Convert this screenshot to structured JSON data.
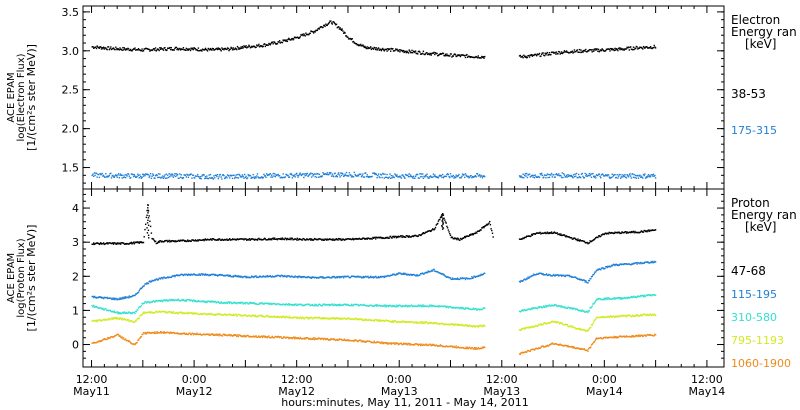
{
  "chart_data": [
    {
      "panel": "electron",
      "type": "scatter",
      "ylabel": [
        "ACE EPAM",
        "log(Electron Flux)",
        "[1/(cm²s ster MeV)]"
      ],
      "ylim": [
        1.25,
        3.55
      ],
      "yticks": [
        1.5,
        2.0,
        2.5,
        3.0,
        3.5
      ],
      "ytick_labels": [
        "1.5",
        "2.0",
        "2.5",
        "3.0",
        "3.5"
      ],
      "legend_title": [
        "Electron",
        "Energy ran",
        "[keV]"
      ],
      "series": [
        {
          "name": "38-53",
          "color": "#000000",
          "x": [
            0,
            4,
            8,
            12,
            16,
            20,
            24,
            28,
            32,
            36,
            40,
            44,
            48,
            52,
            54,
            56,
            58,
            60,
            62,
            64,
            68,
            72,
            76,
            80,
            84,
            88,
            92,
            96,
            100,
            104,
            108,
            112,
            116,
            120,
            124,
            128,
            132
          ],
          "y": [
            3.06,
            3.04,
            3.03,
            3.02,
            3.03,
            3.04,
            3.03,
            3.02,
            3.03,
            3.06,
            3.08,
            3.12,
            3.18,
            3.26,
            3.33,
            3.38,
            3.3,
            3.18,
            3.1,
            3.05,
            3.03,
            3.01,
            2.99,
            2.97,
            2.95,
            2.94,
            2.93,
            null,
            2.93,
            2.95,
            2.98,
            3.0,
            3.01,
            3.02,
            3.03,
            3.05,
            3.06
          ]
        },
        {
          "name": "175-315",
          "color": "#1f7fd6",
          "x": [
            0,
            10,
            20,
            30,
            40,
            50,
            60,
            70,
            80,
            92,
            96,
            100,
            110,
            120,
            132
          ],
          "y": [
            1.41,
            1.4,
            1.4,
            1.39,
            1.4,
            1.41,
            1.42,
            1.4,
            1.4,
            1.4,
            null,
            1.4,
            1.41,
            1.4,
            1.4
          ]
        }
      ]
    },
    {
      "panel": "proton",
      "type": "scatter",
      "ylabel": [
        "ACE EPAM",
        "log(Proton Flux)",
        "[1/(cm²s ster MeV)]"
      ],
      "ylim": [
        -0.6,
        4.5
      ],
      "yticks": [
        0,
        1,
        2,
        3,
        4
      ],
      "ytick_labels": [
        "0",
        "1",
        "2",
        "3",
        "4"
      ],
      "legend_title": [
        "Proton",
        "Energy ran",
        "[keV]"
      ],
      "series": [
        {
          "name": "47-68",
          "color": "#000000",
          "x": [
            0,
            8,
            12,
            13,
            14,
            15,
            16,
            20,
            28,
            36,
            44,
            52,
            60,
            68,
            72,
            76,
            80,
            82,
            84,
            86,
            90,
            93,
            94,
            96,
            100,
            104,
            108,
            112,
            116,
            120,
            124,
            128,
            132
          ],
          "y": [
            2.98,
            2.98,
            3.02,
            4.1,
            3.15,
            3.0,
            3.05,
            3.05,
            3.1,
            3.1,
            3.12,
            3.1,
            3.1,
            3.15,
            3.18,
            3.2,
            3.4,
            3.85,
            3.15,
            3.1,
            3.3,
            3.6,
            3.1,
            null,
            3.1,
            3.28,
            3.3,
            3.15,
            3.0,
            3.28,
            3.3,
            3.32,
            3.38
          ]
        },
        {
          "name": "115-195",
          "color": "#1f7fd6",
          "x": [
            0,
            6,
            10,
            12,
            14,
            16,
            20,
            24,
            30,
            36,
            44,
            52,
            60,
            68,
            72,
            76,
            80,
            84,
            88,
            92,
            96,
            100,
            104,
            108,
            112,
            116,
            118,
            122,
            126,
            132
          ],
          "y": [
            1.42,
            1.35,
            1.45,
            1.75,
            1.9,
            1.95,
            2.05,
            2.08,
            2.05,
            2.0,
            2.03,
            1.98,
            2.0,
            2.0,
            2.1,
            2.05,
            2.2,
            1.95,
            1.95,
            2.1,
            null,
            1.85,
            2.1,
            2.05,
            2.02,
            1.85,
            2.2,
            2.35,
            2.38,
            2.45
          ]
        },
        {
          "name": "310-580",
          "color": "#33e0d0",
          "x": [
            0,
            6,
            10,
            12,
            16,
            20,
            30,
            40,
            50,
            60,
            70,
            80,
            90,
            92,
            96,
            100,
            108,
            116,
            118,
            124,
            132
          ],
          "y": [
            1.15,
            0.95,
            0.95,
            1.25,
            1.3,
            1.33,
            1.25,
            1.22,
            1.18,
            1.18,
            1.15,
            1.15,
            1.05,
            1.08,
            null,
            1.0,
            1.18,
            0.98,
            1.35,
            1.38,
            1.48
          ]
        },
        {
          "name": "795-1193",
          "color": "#d0ea22",
          "x": [
            0,
            6,
            10,
            12,
            16,
            20,
            30,
            40,
            50,
            60,
            70,
            80,
            90,
            92,
            96,
            100,
            108,
            116,
            118,
            124,
            132
          ],
          "y": [
            0.7,
            0.8,
            0.68,
            0.95,
            0.98,
            0.95,
            0.9,
            0.85,
            0.8,
            0.78,
            0.7,
            0.65,
            0.55,
            0.58,
            null,
            0.45,
            0.7,
            0.4,
            0.82,
            0.85,
            0.9
          ]
        },
        {
          "name": "1060-1900",
          "color": "#ee8a1a",
          "x": [
            0,
            6,
            10,
            12,
            16,
            20,
            30,
            40,
            50,
            60,
            70,
            80,
            90,
            92,
            96,
            100,
            108,
            116,
            118,
            124,
            132
          ],
          "y": [
            0.05,
            0.3,
            0.0,
            0.35,
            0.38,
            0.35,
            0.3,
            0.25,
            0.2,
            0.15,
            0.05,
            0.0,
            -0.1,
            -0.05,
            null,
            -0.25,
            0.05,
            -0.15,
            0.2,
            0.25,
            0.3
          ]
        }
      ]
    }
  ],
  "x_axis": {
    "xlim": [
      -2,
      148
    ],
    "major_ticks_hours": [
      0,
      12,
      24,
      36,
      48,
      60,
      72,
      84,
      96
    ],
    "tick_labels": [
      [
        "12:00",
        "May11"
      ],
      [
        "0:00",
        "May12"
      ],
      [
        "12:00",
        "May12"
      ],
      [
        "0:00",
        "May13"
      ],
      [
        "12:00",
        "May13"
      ],
      [
        "0:00",
        "May14"
      ],
      [
        "12:00",
        "May14"
      ]
    ],
    "tick_label_hours": [
      0,
      24,
      48,
      72,
      96,
      120,
      144
    ],
    "xlabel": "hours:minutes, May 11, 2011 - May 14, 2011"
  }
}
